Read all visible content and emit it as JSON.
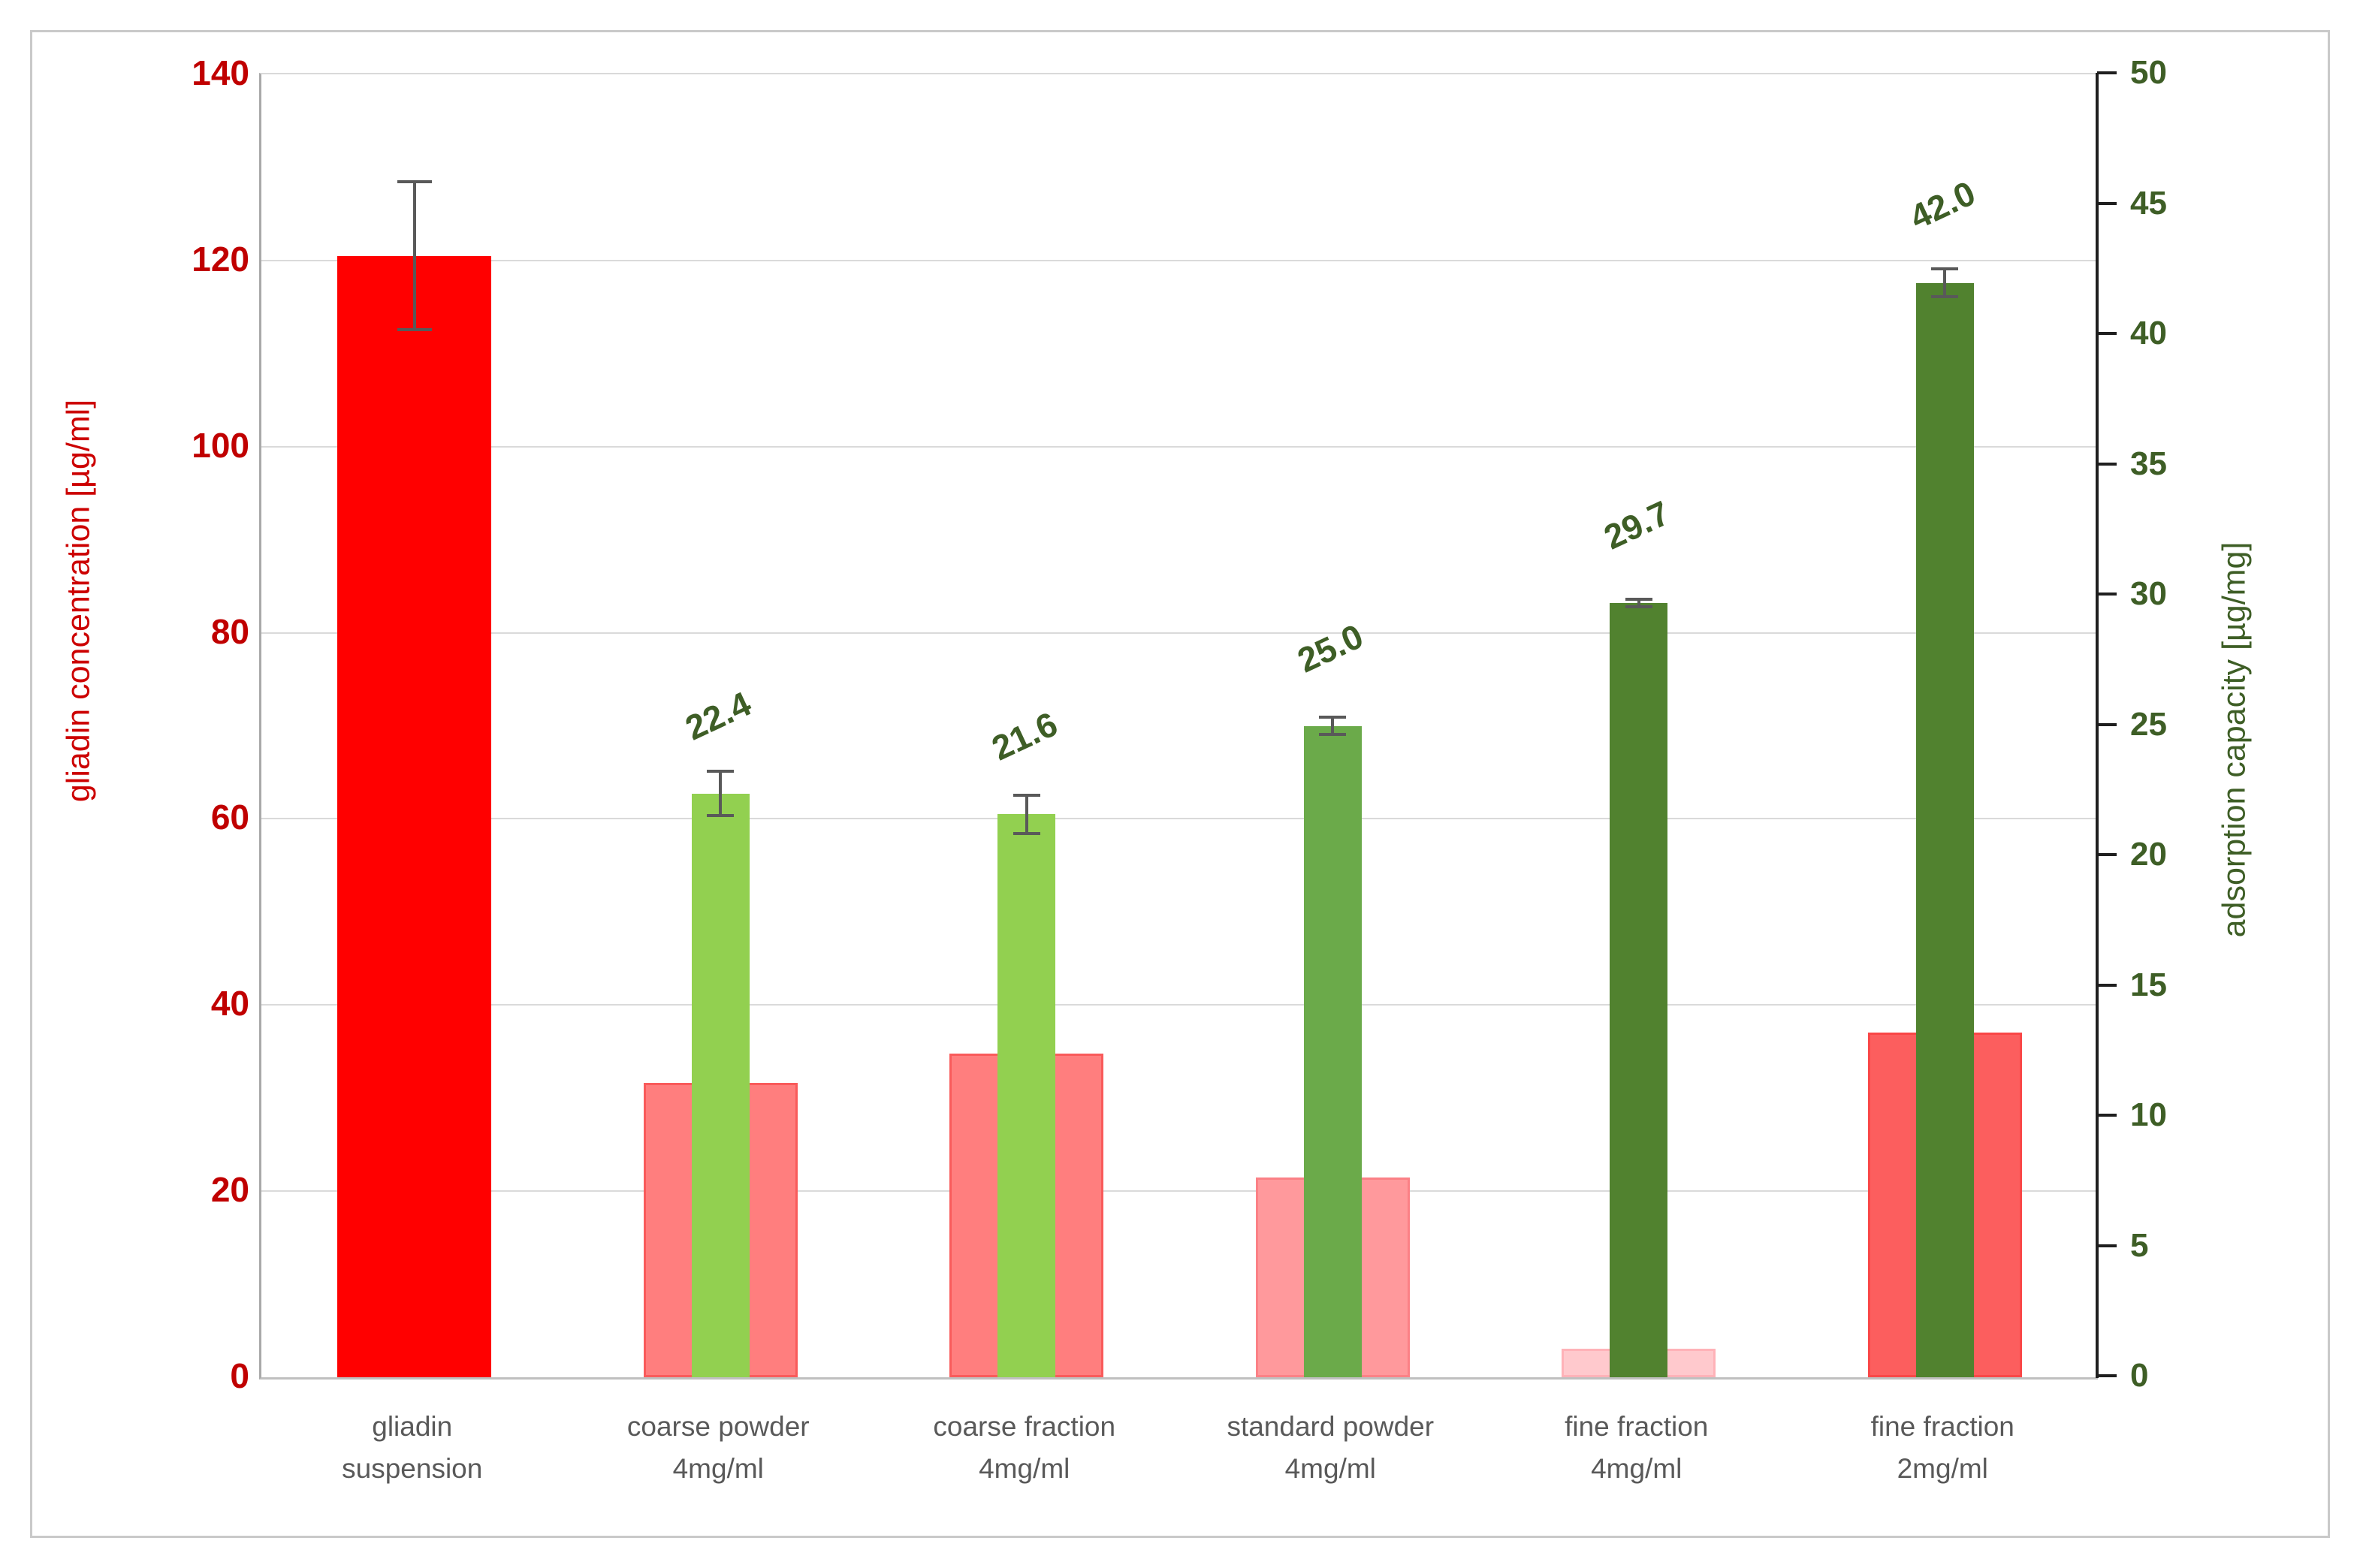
{
  "figure": {
    "background": "#ffffff",
    "frame_color": "#c9c9c9"
  },
  "chart_data": {
    "type": "bar",
    "dual_axis": true,
    "grid": true,
    "legend": null,
    "categories": [
      [
        "gliadin",
        "suspension"
      ],
      [
        "coarse powder",
        "4mg/ml"
      ],
      [
        "coarse fraction",
        "4mg/ml"
      ],
      [
        "standard powder",
        "4mg/ml"
      ],
      [
        "fine fraction",
        "4mg/ml"
      ],
      [
        "fine fraction",
        "2mg/ml"
      ]
    ],
    "series": [
      {
        "name": "gliadin concentration",
        "axis": "left",
        "values": [
          120.5,
          31.6,
          34.8,
          21.5,
          3.1,
          37.0
        ],
        "errors": [
          8.1,
          null,
          null,
          null,
          null,
          null
        ],
        "fills": [
          "#ff0000",
          "#ff7e7e",
          "#ff7e7e",
          "#ff999c",
          "#ffc9cd",
          "#fc5e5e"
        ],
        "borders": [
          "#ff0000",
          "#f95b5b",
          "#f95b5b",
          "#fb8186",
          "#ffb2b8",
          "#f94747"
        ]
      },
      {
        "name": "adsorption capacity",
        "axis": "right",
        "values": [
          null,
          22.4,
          21.6,
          25.0,
          29.7,
          42.0
        ],
        "errors": [
          null,
          0.9,
          0.8,
          0.4,
          0.2,
          0.6
        ],
        "data_labels": [
          null,
          "22.4",
          "21.6",
          "25.0",
          "29.7",
          "42.0"
        ],
        "fills": [
          null,
          "#92d050",
          "#92d050",
          "#6baa4a",
          "#51822f",
          "#51822f"
        ]
      }
    ],
    "left_axis": {
      "title": "gliadin concentration [µg/ml]",
      "min": 0,
      "max": 140,
      "step": 20,
      "tick_labels": [
        "0",
        "20",
        "40",
        "60",
        "80",
        "100",
        "120",
        "140"
      ],
      "tick_color": "#c00000",
      "title_color": "#cc0000"
    },
    "right_axis": {
      "title": "adsorption capacity [µg/mg]",
      "min": 0,
      "max": 50,
      "step": 5,
      "tick_labels": [
        "0",
        "5",
        "10",
        "15",
        "20",
        "25",
        "30",
        "35",
        "40",
        "45",
        "50"
      ],
      "tick_color": "#3e5e26",
      "title_color": "#3e5e26"
    },
    "gridline_color": "#dadada",
    "error_bar_color": "#595959",
    "category_label_color": "#595959"
  }
}
